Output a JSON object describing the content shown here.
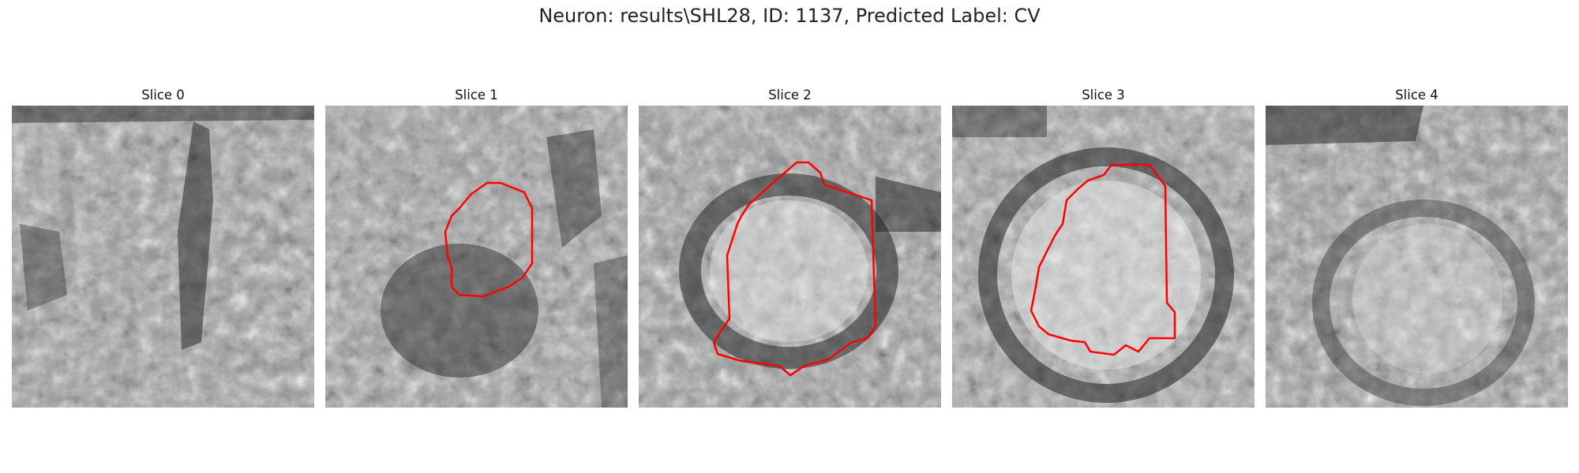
{
  "figure": {
    "title": "Neuron: results\\SHL28, ID: 1137, Predicted Label: CV"
  },
  "colors": {
    "contour": "#ff0000",
    "colormap": "gray"
  },
  "panels": [
    {
      "title": "Slice 0",
      "has_contour": false
    },
    {
      "title": "Slice 1",
      "has_contour": true
    },
    {
      "title": "Slice 2",
      "has_contour": true
    },
    {
      "title": "Slice 3",
      "has_contour": true
    },
    {
      "title": "Slice 4",
      "has_contour": false
    }
  ]
}
